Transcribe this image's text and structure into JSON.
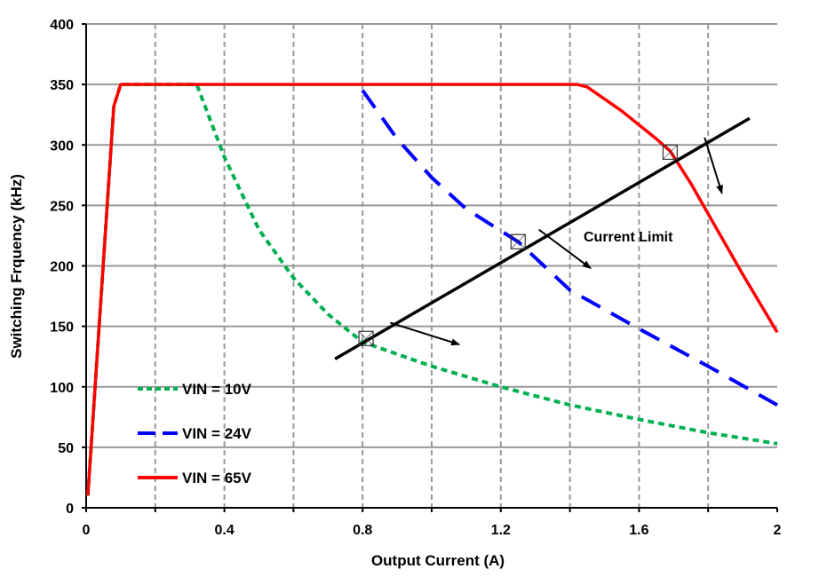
{
  "chart_data": {
    "type": "line",
    "title": "",
    "xlabel": "Output Current (A)",
    "ylabel": "Switching Frquency (kHz)",
    "xlim": [
      0,
      2
    ],
    "ylim": [
      0,
      400
    ],
    "x_ticks": [
      "0",
      "0.4",
      "0.8",
      "1.2",
      "1.6",
      "2"
    ],
    "x_tick_values": [
      0,
      0.4,
      0.8,
      1.2,
      1.6,
      2
    ],
    "y_ticks": [
      "0",
      "50",
      "100",
      "150",
      "200",
      "250",
      "300",
      "350",
      "400"
    ],
    "y_tick_values": [
      0,
      50,
      100,
      150,
      200,
      250,
      300,
      350,
      400
    ],
    "grid": {
      "x_minor_step": 0.2,
      "x_style": "dashed",
      "y_style": "solid"
    },
    "legend_position": "bottom-left",
    "series": [
      {
        "name": "VIN = 10V",
        "color": "#00B050",
        "style": "short-dash",
        "points": [
          [
            0.005,
            10
          ],
          [
            0.08,
            332
          ],
          [
            0.1,
            350
          ],
          [
            0.32,
            350
          ],
          [
            0.36,
            320
          ],
          [
            0.4,
            290
          ],
          [
            0.5,
            230
          ],
          [
            0.6,
            190
          ],
          [
            0.7,
            160
          ],
          [
            0.8,
            137
          ],
          [
            1.0,
            117
          ],
          [
            1.2,
            100
          ],
          [
            1.4,
            85
          ],
          [
            1.6,
            73
          ],
          [
            1.8,
            62
          ],
          [
            2.0,
            53
          ]
        ]
      },
      {
        "name": "VIN = 24V",
        "color": "#0000FF",
        "style": "long-dash",
        "points": [
          [
            0.8,
            345
          ],
          [
            0.9,
            305
          ],
          [
            1.0,
            273
          ],
          [
            1.1,
            247
          ],
          [
            1.25,
            220
          ],
          [
            1.4,
            180
          ],
          [
            1.6,
            148
          ],
          [
            1.8,
            117
          ],
          [
            2.0,
            85
          ]
        ]
      },
      {
        "name": "VIN = 65V",
        "color": "#FF0000",
        "style": "solid",
        "points": [
          [
            0.005,
            10
          ],
          [
            0.08,
            332
          ],
          [
            0.1,
            350
          ],
          [
            1.42,
            350
          ],
          [
            1.45,
            348
          ],
          [
            1.55,
            328
          ],
          [
            1.65,
            305
          ],
          [
            1.69,
            295
          ],
          [
            1.75,
            268
          ],
          [
            1.8,
            243
          ],
          [
            1.9,
            193
          ],
          [
            2.0,
            145
          ]
        ]
      }
    ],
    "annotations": {
      "current_limit_label": "Current Limit",
      "current_limit_line": [
        [
          0.72,
          123
        ],
        [
          1.92,
          322
        ]
      ],
      "intersections": [
        [
          0.81,
          140
        ],
        [
          1.25,
          220
        ],
        [
          1.69,
          294
        ]
      ],
      "arrows": [
        {
          "from": [
            0.88,
            153
          ],
          "to": [
            1.08,
            135
          ]
        },
        {
          "from": [
            1.31,
            230
          ],
          "to": [
            1.46,
            198
          ]
        },
        {
          "from": [
            1.79,
            306
          ],
          "to": [
            1.84,
            260
          ]
        }
      ]
    }
  }
}
